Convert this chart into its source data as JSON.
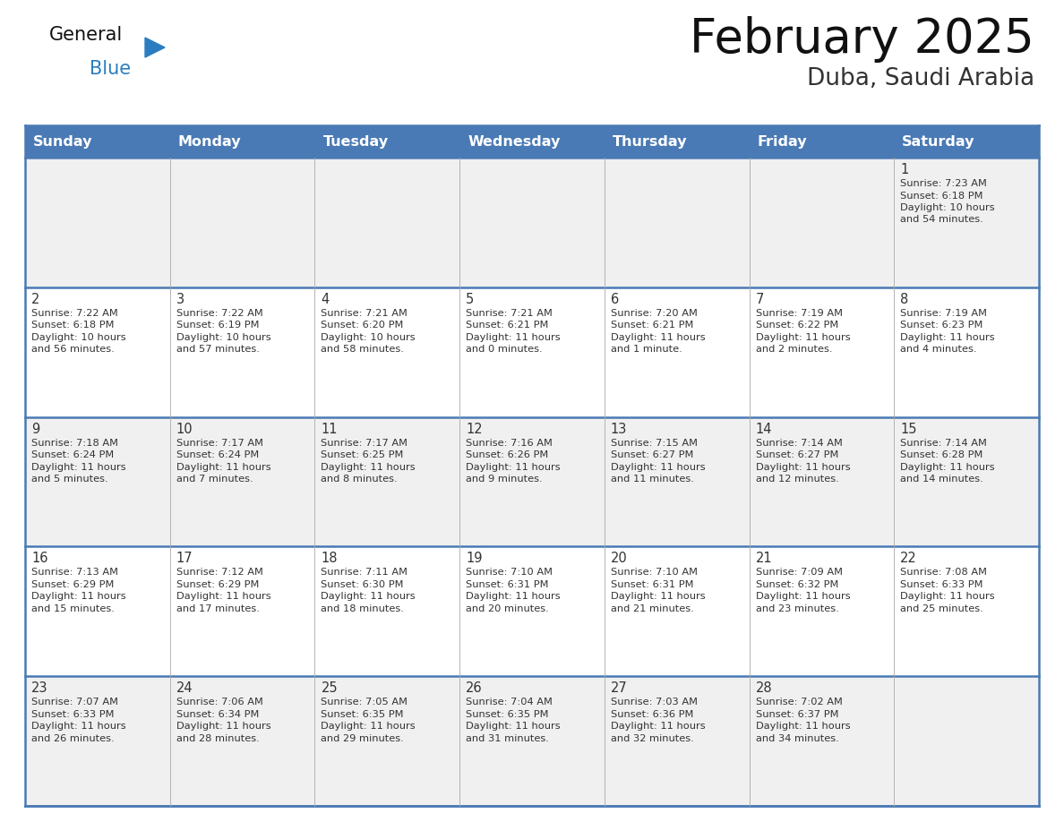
{
  "title": "February 2025",
  "subtitle": "Duba, Saudi Arabia",
  "header_bg_color": "#4a7ab5",
  "header_text_color": "#ffffff",
  "day_names": [
    "Sunday",
    "Monday",
    "Tuesday",
    "Wednesday",
    "Thursday",
    "Friday",
    "Saturday"
  ],
  "cell_bg_even": "#f0f0f0",
  "cell_bg_odd": "#ffffff",
  "border_color": "#4a7ab5",
  "grid_color": "#aaaaaa",
  "text_color": "#333333",
  "title_color": "#111111",
  "subtitle_color": "#333333",
  "logo_general_color": "#111111",
  "logo_blue_color": "#2b7dc0",
  "days": [
    {
      "day": 1,
      "col": 6,
      "row": 0,
      "sunrise": "7:23 AM",
      "sunset": "6:18 PM",
      "daylight": "10 hours and 54 minutes"
    },
    {
      "day": 2,
      "col": 0,
      "row": 1,
      "sunrise": "7:22 AM",
      "sunset": "6:18 PM",
      "daylight": "10 hours and 56 minutes"
    },
    {
      "day": 3,
      "col": 1,
      "row": 1,
      "sunrise": "7:22 AM",
      "sunset": "6:19 PM",
      "daylight": "10 hours and 57 minutes"
    },
    {
      "day": 4,
      "col": 2,
      "row": 1,
      "sunrise": "7:21 AM",
      "sunset": "6:20 PM",
      "daylight": "10 hours and 58 minutes"
    },
    {
      "day": 5,
      "col": 3,
      "row": 1,
      "sunrise": "7:21 AM",
      "sunset": "6:21 PM",
      "daylight": "11 hours and 0 minutes"
    },
    {
      "day": 6,
      "col": 4,
      "row": 1,
      "sunrise": "7:20 AM",
      "sunset": "6:21 PM",
      "daylight": "11 hours and 1 minute"
    },
    {
      "day": 7,
      "col": 5,
      "row": 1,
      "sunrise": "7:19 AM",
      "sunset": "6:22 PM",
      "daylight": "11 hours and 2 minutes"
    },
    {
      "day": 8,
      "col": 6,
      "row": 1,
      "sunrise": "7:19 AM",
      "sunset": "6:23 PM",
      "daylight": "11 hours and 4 minutes"
    },
    {
      "day": 9,
      "col": 0,
      "row": 2,
      "sunrise": "7:18 AM",
      "sunset": "6:24 PM",
      "daylight": "11 hours and 5 minutes"
    },
    {
      "day": 10,
      "col": 1,
      "row": 2,
      "sunrise": "7:17 AM",
      "sunset": "6:24 PM",
      "daylight": "11 hours and 7 minutes"
    },
    {
      "day": 11,
      "col": 2,
      "row": 2,
      "sunrise": "7:17 AM",
      "sunset": "6:25 PM",
      "daylight": "11 hours and 8 minutes"
    },
    {
      "day": 12,
      "col": 3,
      "row": 2,
      "sunrise": "7:16 AM",
      "sunset": "6:26 PM",
      "daylight": "11 hours and 9 minutes"
    },
    {
      "day": 13,
      "col": 4,
      "row": 2,
      "sunrise": "7:15 AM",
      "sunset": "6:27 PM",
      "daylight": "11 hours and 11 minutes"
    },
    {
      "day": 14,
      "col": 5,
      "row": 2,
      "sunrise": "7:14 AM",
      "sunset": "6:27 PM",
      "daylight": "11 hours and 12 minutes"
    },
    {
      "day": 15,
      "col": 6,
      "row": 2,
      "sunrise": "7:14 AM",
      "sunset": "6:28 PM",
      "daylight": "11 hours and 14 minutes"
    },
    {
      "day": 16,
      "col": 0,
      "row": 3,
      "sunrise": "7:13 AM",
      "sunset": "6:29 PM",
      "daylight": "11 hours and 15 minutes"
    },
    {
      "day": 17,
      "col": 1,
      "row": 3,
      "sunrise": "7:12 AM",
      "sunset": "6:29 PM",
      "daylight": "11 hours and 17 minutes"
    },
    {
      "day": 18,
      "col": 2,
      "row": 3,
      "sunrise": "7:11 AM",
      "sunset": "6:30 PM",
      "daylight": "11 hours and 18 minutes"
    },
    {
      "day": 19,
      "col": 3,
      "row": 3,
      "sunrise": "7:10 AM",
      "sunset": "6:31 PM",
      "daylight": "11 hours and 20 minutes"
    },
    {
      "day": 20,
      "col": 4,
      "row": 3,
      "sunrise": "7:10 AM",
      "sunset": "6:31 PM",
      "daylight": "11 hours and 21 minutes"
    },
    {
      "day": 21,
      "col": 5,
      "row": 3,
      "sunrise": "7:09 AM",
      "sunset": "6:32 PM",
      "daylight": "11 hours and 23 minutes"
    },
    {
      "day": 22,
      "col": 6,
      "row": 3,
      "sunrise": "7:08 AM",
      "sunset": "6:33 PM",
      "daylight": "11 hours and 25 minutes"
    },
    {
      "day": 23,
      "col": 0,
      "row": 4,
      "sunrise": "7:07 AM",
      "sunset": "6:33 PM",
      "daylight": "11 hours and 26 minutes"
    },
    {
      "day": 24,
      "col": 1,
      "row": 4,
      "sunrise": "7:06 AM",
      "sunset": "6:34 PM",
      "daylight": "11 hours and 28 minutes"
    },
    {
      "day": 25,
      "col": 2,
      "row": 4,
      "sunrise": "7:05 AM",
      "sunset": "6:35 PM",
      "daylight": "11 hours and 29 minutes"
    },
    {
      "day": 26,
      "col": 3,
      "row": 4,
      "sunrise": "7:04 AM",
      "sunset": "6:35 PM",
      "daylight": "11 hours and 31 minutes"
    },
    {
      "day": 27,
      "col": 4,
      "row": 4,
      "sunrise": "7:03 AM",
      "sunset": "6:36 PM",
      "daylight": "11 hours and 32 minutes"
    },
    {
      "day": 28,
      "col": 5,
      "row": 4,
      "sunrise": "7:02 AM",
      "sunset": "6:37 PM",
      "daylight": "11 hours and 34 minutes"
    }
  ],
  "num_rows": 5,
  "num_cols": 7,
  "fig_width": 11.88,
  "fig_height": 9.18,
  "dpi": 100
}
